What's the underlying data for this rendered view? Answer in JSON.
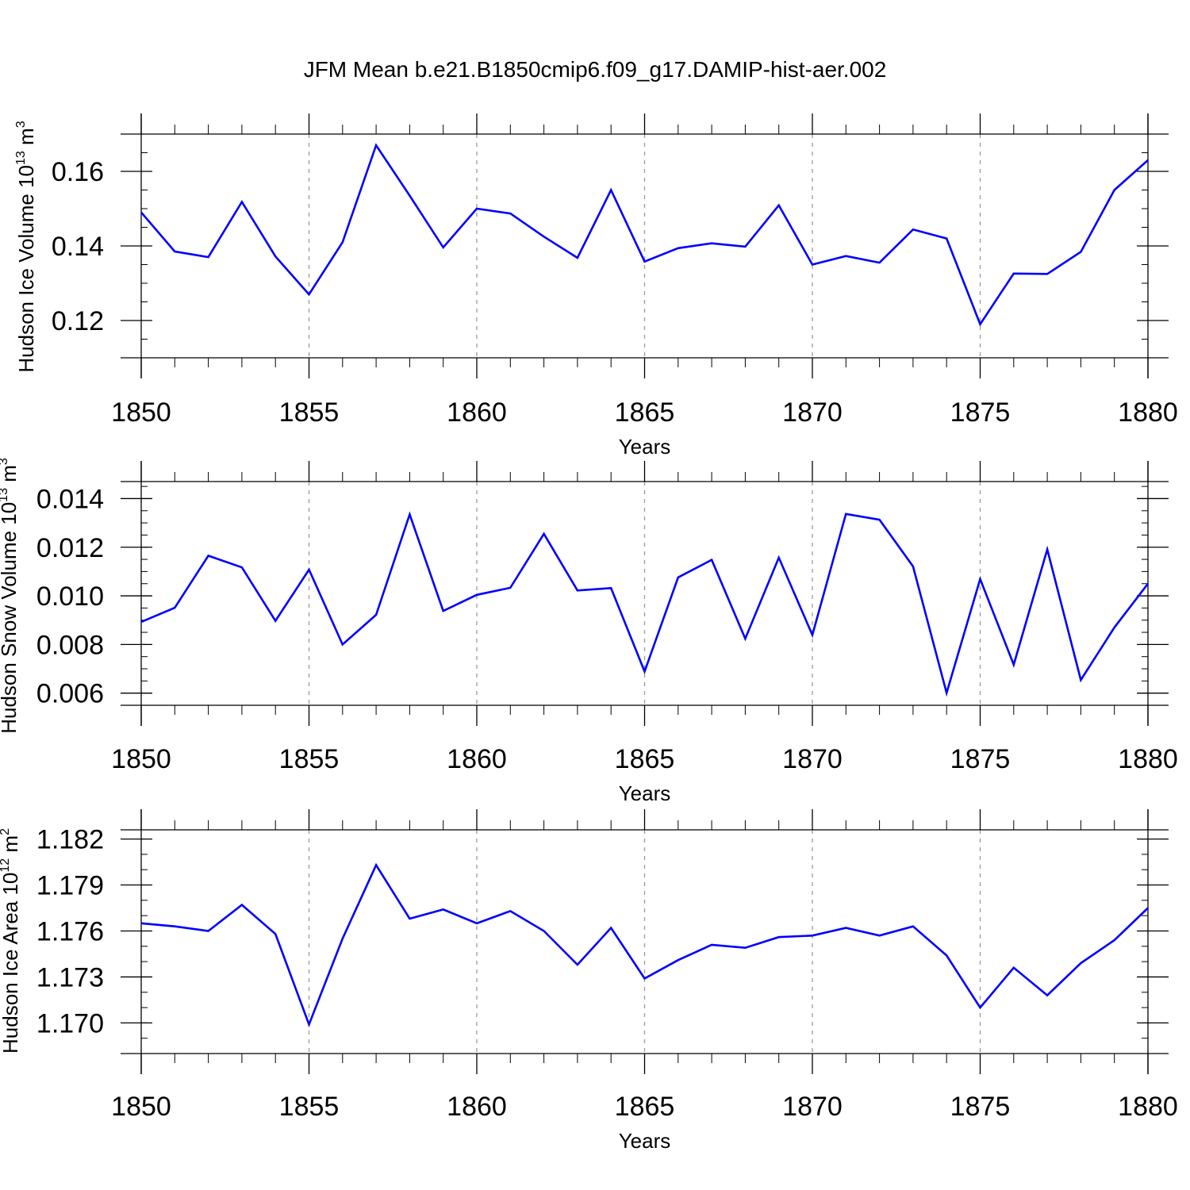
{
  "title": "JFM Mean b.e21.B1850cmip6.f09_g17.DAMIP-hist-aer.002",
  "colors": {
    "line": "#0000ff",
    "axis": "#000000",
    "grid": "#9a9a9a",
    "background": "#ffffff"
  },
  "chart_data": [
    {
      "type": "line",
      "ylabel_main": "Hudson Ice Volume 10",
      "ylabel_exp": "13",
      "ylabel_unit": " m",
      "ylabel_unit_exp": "3",
      "xlabel": "Years",
      "xlim": [
        1850,
        1880
      ],
      "ylim": [
        0.11,
        0.17
      ],
      "x_ticks": [
        "1850",
        "1855",
        "1860",
        "1865",
        "1870",
        "1875",
        "1880"
      ],
      "y_ticks": [
        "0.12",
        "0.14",
        "0.16"
      ],
      "y_tick_values": [
        0.12,
        0.14,
        0.16
      ],
      "y_minor_step": 0.005,
      "grid": "vertical dashed at major x ticks",
      "x": [
        1850,
        1851,
        1852,
        1853,
        1854,
        1855,
        1856,
        1857,
        1858,
        1859,
        1860,
        1861,
        1862,
        1863,
        1864,
        1865,
        1866,
        1867,
        1868,
        1869,
        1870,
        1871,
        1872,
        1873,
        1874,
        1875,
        1876,
        1877,
        1878,
        1879,
        1880
      ],
      "values": [
        0.149,
        0.1385,
        0.137,
        0.1518,
        0.1372,
        0.127,
        0.141,
        0.167,
        0.1535,
        0.1396,
        0.15,
        0.1487,
        0.1425,
        0.1368,
        0.155,
        0.1358,
        0.1394,
        0.1407,
        0.1398,
        0.1509,
        0.135,
        0.1373,
        0.1355,
        0.1444,
        0.142,
        0.119,
        0.1326,
        0.1325,
        0.1384,
        0.155,
        0.163
      ]
    },
    {
      "type": "line",
      "ylabel_main": "Hudson Snow Volume 10",
      "ylabel_exp": "13",
      "ylabel_unit": " m",
      "ylabel_unit_exp": "3",
      "xlabel": "Years",
      "xlim": [
        1850,
        1880
      ],
      "ylim": [
        0.0055,
        0.0147
      ],
      "x_ticks": [
        "1850",
        "1855",
        "1860",
        "1865",
        "1870",
        "1875",
        "1880"
      ],
      "y_ticks": [
        "0.006",
        "0.008",
        "0.010",
        "0.012",
        "0.014"
      ],
      "y_tick_values": [
        0.006,
        0.008,
        0.01,
        0.012,
        0.014
      ],
      "y_minor_step": 0.0005,
      "grid": "vertical dashed at major x ticks",
      "x": [
        1850,
        1851,
        1852,
        1853,
        1854,
        1855,
        1856,
        1857,
        1858,
        1859,
        1860,
        1861,
        1862,
        1863,
        1864,
        1865,
        1866,
        1867,
        1868,
        1869,
        1870,
        1871,
        1872,
        1873,
        1874,
        1875,
        1876,
        1877,
        1878,
        1879,
        1880
      ],
      "values": [
        0.00893,
        0.00951,
        0.01165,
        0.01117,
        0.00897,
        0.01108,
        0.008,
        0.00922,
        0.01335,
        0.00938,
        0.01004,
        0.01033,
        0.01255,
        0.01022,
        0.01032,
        0.00689,
        0.01076,
        0.01148,
        0.00824,
        0.01157,
        0.00839,
        0.01337,
        0.01313,
        0.01121,
        0.00601,
        0.01069,
        0.00717,
        0.01191,
        0.00654,
        0.0087,
        0.0105
      ]
    },
    {
      "type": "line",
      "ylabel_main": "Hudson Ice Area 10",
      "ylabel_exp": "12",
      "ylabel_unit": " m",
      "ylabel_unit_exp": "2",
      "xlabel": "Years",
      "xlim": [
        1850,
        1880
      ],
      "ylim": [
        1.168,
        1.1826
      ],
      "x_ticks": [
        "1850",
        "1855",
        "1860",
        "1865",
        "1870",
        "1875",
        "1880"
      ],
      "y_ticks": [
        "1.170",
        "1.173",
        "1.176",
        "1.179",
        "1.182"
      ],
      "y_tick_values": [
        1.17,
        1.173,
        1.176,
        1.179,
        1.182
      ],
      "y_minor_step": 0.001,
      "grid": "vertical dashed at major x ticks",
      "x": [
        1850,
        1851,
        1852,
        1853,
        1854,
        1855,
        1856,
        1857,
        1858,
        1859,
        1860,
        1861,
        1862,
        1863,
        1864,
        1865,
        1866,
        1867,
        1868,
        1869,
        1870,
        1871,
        1872,
        1873,
        1874,
        1875,
        1876,
        1877,
        1878,
        1879,
        1880
      ],
      "values": [
        1.1765,
        1.1763,
        1.176,
        1.1777,
        1.1758,
        1.1699,
        1.1755,
        1.1803,
        1.1768,
        1.1774,
        1.1765,
        1.1773,
        1.176,
        1.1738,
        1.1762,
        1.1729,
        1.1741,
        1.1751,
        1.1749,
        1.1756,
        1.1757,
        1.1762,
        1.1757,
        1.1763,
        1.1744,
        1.171,
        1.1736,
        1.1718,
        1.1739,
        1.1754,
        1.1775
      ]
    }
  ]
}
